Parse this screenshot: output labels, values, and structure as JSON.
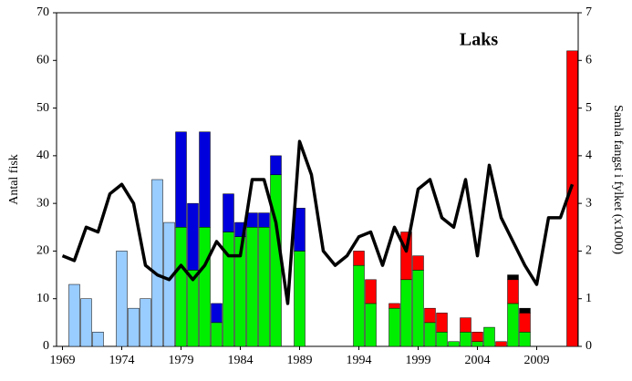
{
  "chart_data": {
    "type": "bar",
    "title": "Laks",
    "y_label": "Antal fisk",
    "y2_label": "Samla fangst i fylket (x1000)",
    "categories": [
      "1969",
      null,
      null,
      null,
      null,
      "1974",
      null,
      null,
      null,
      null,
      "1979",
      null,
      null,
      null,
      null,
      "1984",
      null,
      null,
      null,
      null,
      "1989",
      null,
      null,
      null,
      null,
      "1994",
      null,
      null,
      null,
      null,
      "1999",
      null,
      null,
      null,
      null,
      "2004",
      null,
      null,
      null,
      null,
      "2009",
      null,
      null,
      null
    ],
    "stacked": true,
    "series": [
      {
        "color": "#99ccff",
        "values": [
          0,
          13,
          10,
          3,
          0,
          20,
          8,
          10,
          35,
          26,
          0,
          0,
          0,
          0,
          0,
          0,
          0,
          0,
          0,
          0,
          0,
          0,
          0,
          0,
          0,
          0,
          0,
          0,
          0,
          0,
          0,
          0,
          0,
          0,
          0,
          0,
          0,
          0,
          0,
          0,
          0,
          0,
          0,
          0
        ]
      },
      {
        "color": "#00ee00",
        "values": [
          0,
          0,
          0,
          0,
          0,
          0,
          0,
          0,
          0,
          0,
          25,
          16,
          25,
          5,
          24,
          23,
          25,
          25,
          36,
          0,
          20,
          0,
          0,
          0,
          0,
          17,
          9,
          0,
          8,
          14,
          16,
          5,
          3,
          1,
          3,
          1,
          4,
          0,
          9,
          3,
          0,
          0,
          0,
          0
        ]
      },
      {
        "color": "#0000dd",
        "values": [
          0,
          0,
          0,
          0,
          0,
          0,
          0,
          0,
          0,
          0,
          20,
          14,
          20,
          4,
          8,
          3,
          3,
          3,
          4,
          0,
          9,
          0,
          0,
          0,
          0,
          0,
          0,
          0,
          0,
          0,
          0,
          0,
          0,
          0,
          0,
          0,
          0,
          0,
          0,
          0,
          0,
          0,
          0,
          0
        ]
      },
      {
        "color": "#ff0000",
        "values": [
          0,
          0,
          0,
          0,
          0,
          0,
          0,
          0,
          0,
          0,
          0,
          0,
          0,
          0,
          0,
          0,
          0,
          0,
          0,
          0,
          0,
          0,
          0,
          0,
          0,
          3,
          5,
          0,
          1,
          10,
          3,
          3,
          4,
          0,
          3,
          2,
          0,
          1,
          5,
          4,
          0,
          0,
          0,
          62
        ]
      },
      {
        "color": "#000000",
        "values": [
          0,
          0,
          0,
          0,
          0,
          0,
          0,
          0,
          0,
          0,
          0,
          0,
          0,
          0,
          0,
          0,
          0,
          0,
          0,
          0,
          0,
          0,
          0,
          0,
          0,
          0,
          0,
          0,
          0,
          0,
          0,
          0,
          0,
          0,
          0,
          0,
          0,
          0,
          1,
          1,
          0,
          0,
          0,
          0
        ]
      },
      {
        "type": "line",
        "axis": "y2",
        "color": "#000000",
        "values": [
          1.9,
          1.8,
          2.5,
          2.4,
          3.2,
          3.4,
          3.0,
          1.7,
          1.5,
          1.4,
          1.7,
          1.4,
          1.7,
          2.2,
          1.9,
          1.9,
          3.5,
          3.5,
          2.6,
          0.9,
          4.3,
          3.6,
          2.0,
          1.7,
          1.9,
          2.3,
          2.4,
          1.7,
          2.5,
          2.0,
          3.3,
          3.5,
          2.7,
          2.5,
          3.5,
          1.9,
          3.8,
          2.7,
          2.2,
          1.7,
          1.3,
          2.7,
          2.7,
          3.4
        ]
      }
    ],
    "ylim": [
      0,
      70
    ],
    "yticks": [
      0,
      10,
      20,
      30,
      40,
      50,
      60,
      70
    ],
    "y2lim": [
      0,
      7
    ],
    "y2ticks": [
      0,
      1,
      2,
      3,
      4,
      5,
      6,
      7
    ],
    "grid": false
  }
}
